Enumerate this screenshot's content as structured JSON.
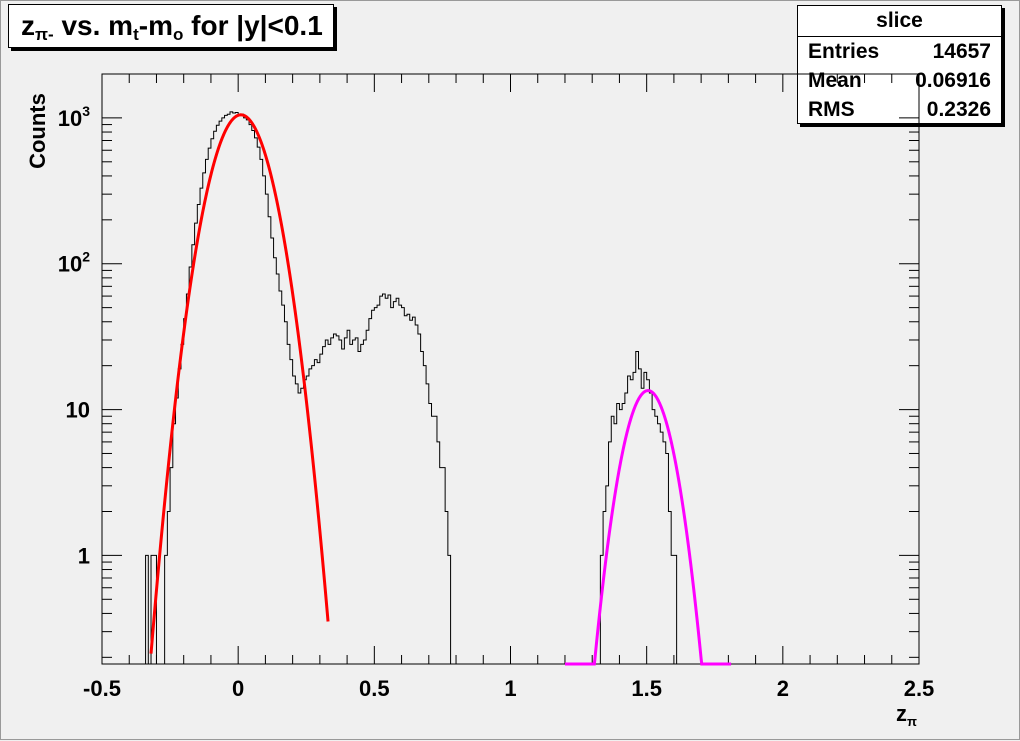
{
  "title": {
    "prefix": "z",
    "prefix_sub": "π-",
    "middle": " vs. m",
    "middle_sub": "t",
    "suffix": "-m",
    "suffix_sub": "o",
    "end": " for |y|<0.1"
  },
  "stats": {
    "name": "slice",
    "rows": [
      {
        "label": "Entries",
        "value": "14657"
      },
      {
        "label": "Mean",
        "value": "0.06916"
      },
      {
        "label": "RMS",
        "value": "0.2326"
      }
    ]
  },
  "colors": {
    "histogram": "#000000",
    "fit_red": "#ff0000",
    "fit_magenta": "#ff00ff",
    "frame_bg": "#f0f0f0"
  },
  "chart_data": {
    "type": "histogram",
    "xlabel": "z",
    "xlabel_sub": "π",
    "ylabel": "Counts",
    "xlim": [
      -0.5,
      2.5
    ],
    "ylim": [
      0.18,
      2000
    ],
    "log_y": true,
    "grid": false,
    "x_ticks": [
      {
        "v": -0.5,
        "label": "-0.5"
      },
      {
        "v": 0,
        "label": "0"
      },
      {
        "v": 0.5,
        "label": "0.5"
      },
      {
        "v": 1,
        "label": "1"
      },
      {
        "v": 1.5,
        "label": "1.5"
      },
      {
        "v": 2,
        "label": "2"
      },
      {
        "v": 2.5,
        "label": "2.5"
      }
    ],
    "y_ticks": [
      {
        "v": 1,
        "base": "1",
        "exp": ""
      },
      {
        "v": 10,
        "base": "10",
        "exp": ""
      },
      {
        "v": 100,
        "base": "10",
        "exp": "2"
      },
      {
        "v": 1000,
        "base": "10",
        "exp": "3"
      }
    ],
    "histogram": {
      "bin_width": 0.01,
      "bins": [
        [
          -0.34,
          1
        ],
        [
          -0.33,
          0.1
        ],
        [
          -0.32,
          1
        ],
        [
          -0.31,
          1
        ],
        [
          -0.3,
          0.1
        ],
        [
          -0.29,
          0.1
        ],
        [
          -0.28,
          0.1
        ],
        [
          -0.27,
          1
        ],
        [
          -0.26,
          2
        ],
        [
          -0.25,
          4
        ],
        [
          -0.24,
          8
        ],
        [
          -0.23,
          12
        ],
        [
          -0.22,
          19
        ],
        [
          -0.21,
          28
        ],
        [
          -0.2,
          42
        ],
        [
          -0.19,
          62
        ],
        [
          -0.18,
          95
        ],
        [
          -0.17,
          135
        ],
        [
          -0.16,
          190
        ],
        [
          -0.15,
          255
        ],
        [
          -0.14,
          330
        ],
        [
          -0.13,
          420
        ],
        [
          -0.12,
          520
        ],
        [
          -0.11,
          620
        ],
        [
          -0.1,
          720
        ],
        [
          -0.09,
          810
        ],
        [
          -0.08,
          890
        ],
        [
          -0.07,
          950
        ],
        [
          -0.06,
          1000
        ],
        [
          -0.05,
          1040
        ],
        [
          -0.04,
          1060
        ],
        [
          -0.03,
          1100
        ],
        [
          -0.02,
          1080
        ],
        [
          -0.01,
          1090
        ],
        [
          0.0,
          1050
        ],
        [
          0.01,
          1060
        ],
        [
          0.02,
          1000
        ],
        [
          0.03,
          970
        ],
        [
          0.04,
          900
        ],
        [
          0.05,
          820
        ],
        [
          0.06,
          730
        ],
        [
          0.07,
          630
        ],
        [
          0.08,
          520
        ],
        [
          0.09,
          400
        ],
        [
          0.1,
          300
        ],
        [
          0.11,
          210
        ],
        [
          0.12,
          150
        ],
        [
          0.13,
          110
        ],
        [
          0.14,
          85
        ],
        [
          0.15,
          65
        ],
        [
          0.16,
          52
        ],
        [
          0.17,
          40
        ],
        [
          0.18,
          28
        ],
        [
          0.19,
          22
        ],
        [
          0.2,
          17
        ],
        [
          0.21,
          15
        ],
        [
          0.22,
          13
        ],
        [
          0.23,
          14
        ],
        [
          0.24,
          16
        ],
        [
          0.25,
          17
        ],
        [
          0.26,
          19
        ],
        [
          0.27,
          20
        ],
        [
          0.28,
          22
        ],
        [
          0.29,
          21
        ],
        [
          0.3,
          24
        ],
        [
          0.31,
          27
        ],
        [
          0.32,
          30
        ],
        [
          0.33,
          28
        ],
        [
          0.34,
          31
        ],
        [
          0.35,
          33
        ],
        [
          0.36,
          32
        ],
        [
          0.37,
          30
        ],
        [
          0.38,
          26
        ],
        [
          0.39,
          31
        ],
        [
          0.4,
          35
        ],
        [
          0.41,
          28
        ],
        [
          0.42,
          30
        ],
        [
          0.43,
          31
        ],
        [
          0.44,
          25
        ],
        [
          0.45,
          28
        ],
        [
          0.46,
          30
        ],
        [
          0.47,
          35
        ],
        [
          0.48,
          42
        ],
        [
          0.49,
          48
        ],
        [
          0.5,
          50
        ],
        [
          0.51,
          52
        ],
        [
          0.52,
          60
        ],
        [
          0.53,
          62
        ],
        [
          0.54,
          58
        ],
        [
          0.55,
          61
        ],
        [
          0.56,
          50
        ],
        [
          0.57,
          55
        ],
        [
          0.58,
          58
        ],
        [
          0.59,
          52
        ],
        [
          0.6,
          50
        ],
        [
          0.61,
          44
        ],
        [
          0.62,
          45
        ],
        [
          0.63,
          41
        ],
        [
          0.64,
          43
        ],
        [
          0.65,
          38
        ],
        [
          0.66,
          33
        ],
        [
          0.67,
          25
        ],
        [
          0.68,
          20
        ],
        [
          0.69,
          15
        ],
        [
          0.7,
          11
        ],
        [
          0.71,
          9
        ],
        [
          0.72,
          9
        ],
        [
          0.73,
          6
        ],
        [
          0.74,
          4
        ],
        [
          0.75,
          4
        ],
        [
          0.76,
          2
        ],
        [
          0.77,
          1
        ],
        [
          0.78,
          0.1
        ],
        [
          0.79,
          0.1
        ],
        [
          0.8,
          0.1
        ],
        [
          0.81,
          0.1
        ],
        [
          0.82,
          0.1
        ],
        [
          0.83,
          0.1
        ],
        [
          0.84,
          0.1
        ],
        [
          0.85,
          0.1
        ],
        [
          0.86,
          0.1
        ],
        [
          0.87,
          0.1
        ],
        [
          0.88,
          0.1
        ],
        [
          0.89,
          0.1
        ],
        [
          0.9,
          0.1
        ],
        [
          0.91,
          0.1
        ],
        [
          0.92,
          0.1
        ],
        [
          0.93,
          0.1
        ],
        [
          0.94,
          0.1
        ],
        [
          0.95,
          0.1
        ],
        [
          0.96,
          0.1
        ],
        [
          0.97,
          0.1
        ],
        [
          0.98,
          0.1
        ],
        [
          0.99,
          0.1
        ],
        [
          1.0,
          0.1
        ],
        [
          1.01,
          0.1
        ],
        [
          1.02,
          0.1
        ],
        [
          1.03,
          0.1
        ],
        [
          1.04,
          0.1
        ],
        [
          1.05,
          0.1
        ],
        [
          1.06,
          0.1
        ],
        [
          1.07,
          0.1
        ],
        [
          1.08,
          0.1
        ],
        [
          1.09,
          0.1
        ],
        [
          1.1,
          0.1
        ],
        [
          1.11,
          0.1
        ],
        [
          1.12,
          0.1
        ],
        [
          1.13,
          0.1
        ],
        [
          1.14,
          0.1
        ],
        [
          1.15,
          0.1
        ],
        [
          1.16,
          0.1
        ],
        [
          1.17,
          0.1
        ],
        [
          1.18,
          0.1
        ],
        [
          1.19,
          0.1
        ],
        [
          1.2,
          0.1
        ],
        [
          1.21,
          0.1
        ],
        [
          1.22,
          0.1
        ],
        [
          1.23,
          0.1
        ],
        [
          1.24,
          0.1
        ],
        [
          1.25,
          0.1
        ],
        [
          1.26,
          0.1
        ],
        [
          1.27,
          0.1
        ],
        [
          1.28,
          0.1
        ],
        [
          1.29,
          0.1
        ],
        [
          1.3,
          0.1
        ],
        [
          1.31,
          0.1
        ],
        [
          1.32,
          0.1
        ],
        [
          1.33,
          1
        ],
        [
          1.34,
          2
        ],
        [
          1.35,
          3
        ],
        [
          1.36,
          6
        ],
        [
          1.37,
          9
        ],
        [
          1.38,
          8
        ],
        [
          1.39,
          11
        ],
        [
          1.4,
          10
        ],
        [
          1.41,
          11
        ],
        [
          1.42,
          13
        ],
        [
          1.43,
          17
        ],
        [
          1.44,
          16
        ],
        [
          1.45,
          18
        ],
        [
          1.46,
          25
        ],
        [
          1.47,
          19
        ],
        [
          1.48,
          14
        ],
        [
          1.49,
          18
        ],
        [
          1.5,
          16
        ],
        [
          1.51,
          13
        ],
        [
          1.52,
          10
        ],
        [
          1.53,
          9
        ],
        [
          1.54,
          8
        ],
        [
          1.55,
          7
        ],
        [
          1.56,
          6
        ],
        [
          1.57,
          5
        ],
        [
          1.58,
          2
        ],
        [
          1.59,
          1
        ],
        [
          1.6,
          1
        ],
        [
          1.61,
          0.1
        ],
        [
          1.62,
          0.1
        ],
        [
          1.63,
          0.1
        ]
      ]
    },
    "fits": [
      {
        "name": "gaus-pi",
        "color": "#ff0000",
        "amplitude": 1050,
        "mean": 0.01,
        "sigma": 0.08,
        "x_range": [
          -0.32,
          0.33
        ]
      },
      {
        "name": "gaus-p",
        "color": "#ff00ff",
        "amplitude": 13.5,
        "mean": 1.505,
        "sigma": 0.067,
        "x_range": [
          1.2,
          1.81
        ]
      }
    ]
  }
}
